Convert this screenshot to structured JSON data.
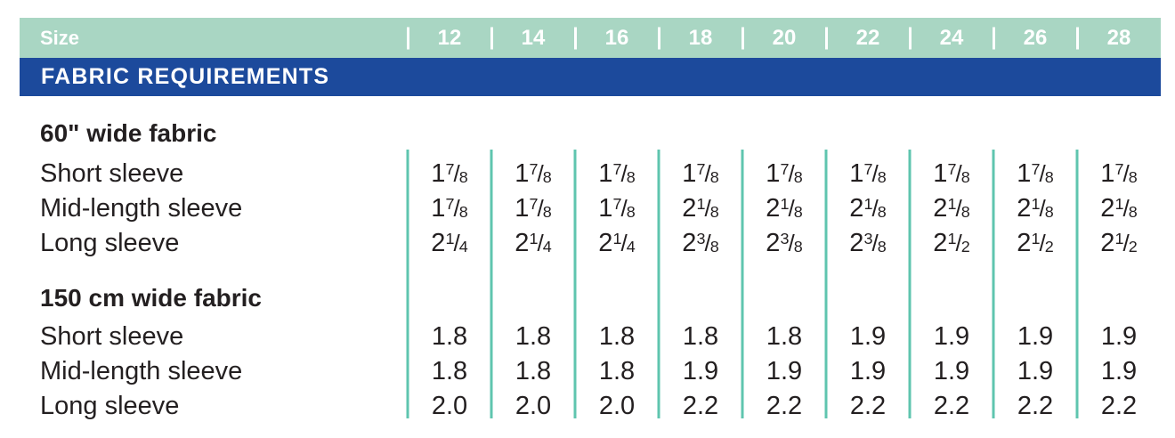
{
  "table": {
    "header": {
      "size_label": "Size",
      "sizes": [
        "12",
        "14",
        "16",
        "18",
        "20",
        "22",
        "24",
        "26",
        "28"
      ]
    },
    "section_bar": {
      "title": "FABRIC REQUIREMENTS"
    },
    "sections": [
      {
        "heading": "60\" wide fabric",
        "rows": [
          {
            "label": "Short sleeve",
            "values": [
              "1 7/8",
              "1 7/8",
              "1 7/8",
              "1 7/8",
              "1 7/8",
              "1 7/8",
              "1 7/8",
              "1 7/8",
              "1 7/8"
            ]
          },
          {
            "label": "Mid-length sleeve",
            "values": [
              "1 7/8",
              "1 7/8",
              "1 7/8",
              "2 1/8",
              "2 1/8",
              "2 1/8",
              "2 1/8",
              "2 1/8",
              "2 1/8"
            ]
          },
          {
            "label": "Long sleeve",
            "values": [
              "2 1/4",
              "2 1/4",
              "2 1/4",
              "2 3/8",
              "2 3/8",
              "2 3/8",
              "2 1/2",
              "2 1/2",
              "2 1/2"
            ]
          }
        ]
      },
      {
        "heading": "150 cm wide fabric",
        "rows": [
          {
            "label": "Short sleeve",
            "values": [
              "1.8",
              "1.8",
              "1.8",
              "1.8",
              "1.8",
              "1.9",
              "1.9",
              "1.9",
              "1.9"
            ]
          },
          {
            "label": "Mid-length sleeve",
            "values": [
              "1.8",
              "1.8",
              "1.8",
              "1.9",
              "1.9",
              "1.9",
              "1.9",
              "1.9",
              "1.9"
            ]
          },
          {
            "label": "Long sleeve",
            "values": [
              "2.0",
              "2.0",
              "2.0",
              "2.2",
              "2.2",
              "2.2",
              "2.2",
              "2.2",
              "2.2"
            ]
          }
        ]
      }
    ],
    "colors": {
      "header_green": "#a9d6c3",
      "bar_blue": "#1c4a9c",
      "separator_teal": "#5fc5af",
      "text": "#231f20"
    }
  }
}
